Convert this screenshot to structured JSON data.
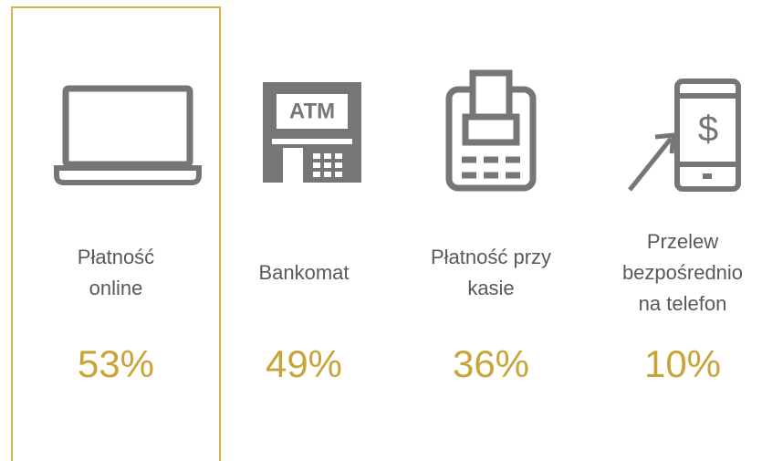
{
  "items": [
    {
      "label_lines": [
        "Płatność",
        "online"
      ],
      "value": "53%"
    },
    {
      "label_lines": [
        "Bankomat"
      ],
      "value": "49%",
      "icon_text": "ATM"
    },
    {
      "label_lines": [
        "Płatność przy",
        "kasie"
      ],
      "value": "36%"
    },
    {
      "label_lines": [
        "Przelew",
        "bezpośrednio",
        "na telefon"
      ],
      "value": "10%",
      "icon_text": "$"
    }
  ]
}
